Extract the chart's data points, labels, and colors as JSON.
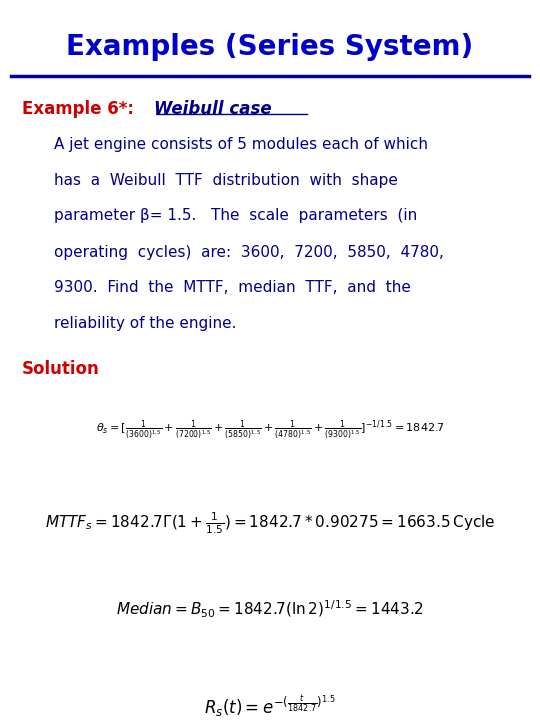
{
  "title": "Examples (Series System)",
  "title_color": "#0000CC",
  "title_fontsize": 20,
  "line_color": "#0000AA",
  "example_label": "Example 6*: ",
  "example_italic": "Weibull case",
  "example_color": "#CC0000",
  "body_color": "#00008B",
  "solution_label": "Solution",
  "solution_color": "#CC0000",
  "bg_color": "#FFFFFF",
  "body_lines": [
    "A jet engine consists of 5 modules each of which",
    "has  a  Weibull  TTF  distribution  with  shape",
    "parameter β= 1.5.   The  scale  parameters  (in",
    "operating  cycles)  are:  3600,  7200,  5850,  4780,",
    "9300.  Find  the  MTTF,  median  TTF,  and  the",
    "reliability of the engine."
  ]
}
